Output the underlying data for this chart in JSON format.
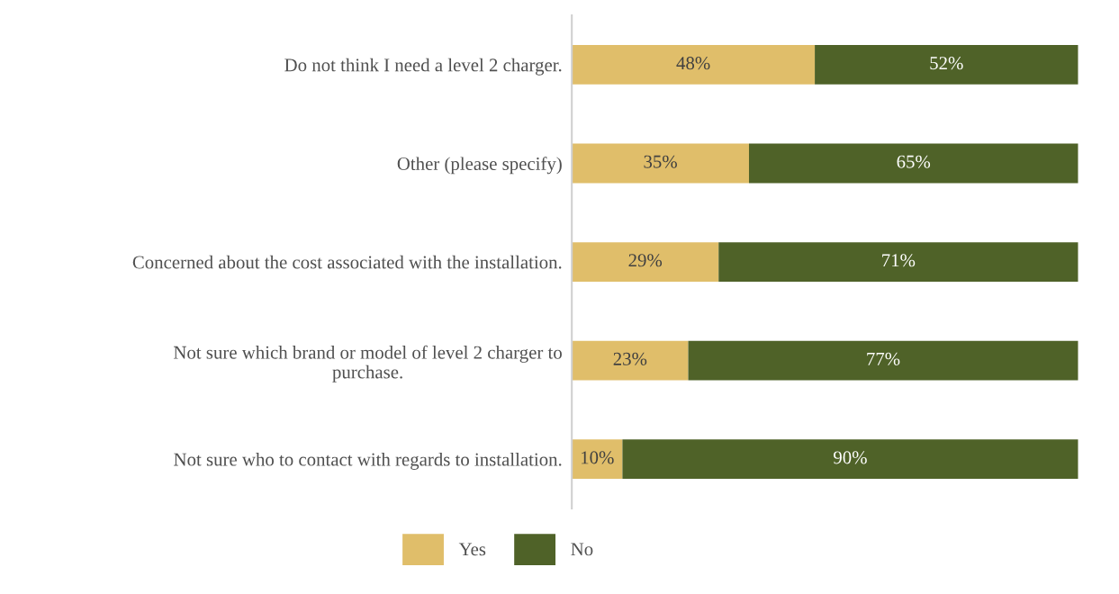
{
  "chart_data": {
    "type": "bar",
    "orientation": "horizontal",
    "stacked": true,
    "legend": "bottom",
    "grid": false,
    "tick_labels": "y",
    "categories": [
      "Do not think I need a level 2 charger.",
      "Other (please specify)",
      "Concerned about the cost associated with the installation.",
      "Not sure which brand or model of level 2 charger to\npurchase.",
      "Not sure who to contact with regards to installation."
    ],
    "series": [
      {
        "name": "Yes",
        "color": "#e0be6a",
        "values": [
          48,
          35,
          29,
          23,
          10
        ],
        "value_labels": [
          "48%",
          "35%",
          "29%",
          "23%",
          "10%"
        ]
      },
      {
        "name": "No",
        "color": "#4f6228",
        "values": [
          52,
          65,
          71,
          77,
          90
        ],
        "value_labels": [
          "52%",
          "65%",
          "71%",
          "77%",
          "90%"
        ]
      }
    ]
  }
}
